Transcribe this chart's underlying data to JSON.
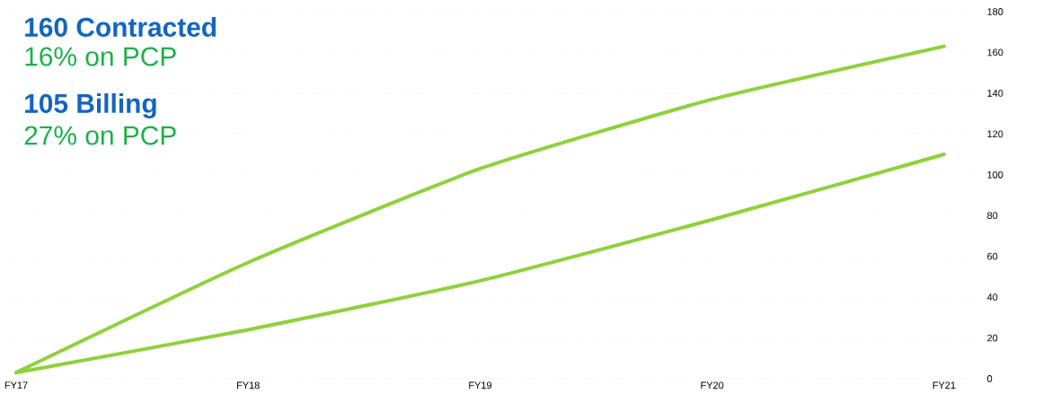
{
  "chart_data": {
    "type": "line",
    "categories": [
      "FY17",
      "FY18",
      "FY19",
      "FY20",
      "FY21"
    ],
    "series": [
      {
        "color": "#8fd13a",
        "values": [
          3,
          57,
          103,
          137,
          163
        ]
      },
      {
        "color": "#8fd13a",
        "values": [
          3,
          24,
          48,
          78,
          110
        ]
      }
    ],
    "ylim": [
      0,
      180
    ],
    "yticks": [
      0,
      20,
      40,
      60,
      80,
      100,
      120,
      140,
      160,
      180
    ],
    "grid": "y",
    "line_style": "solid",
    "marker": "none",
    "annotations": [
      "160 Contracted",
      "16% on PCP",
      "105 Billing",
      "27% on PCP"
    ]
  }
}
